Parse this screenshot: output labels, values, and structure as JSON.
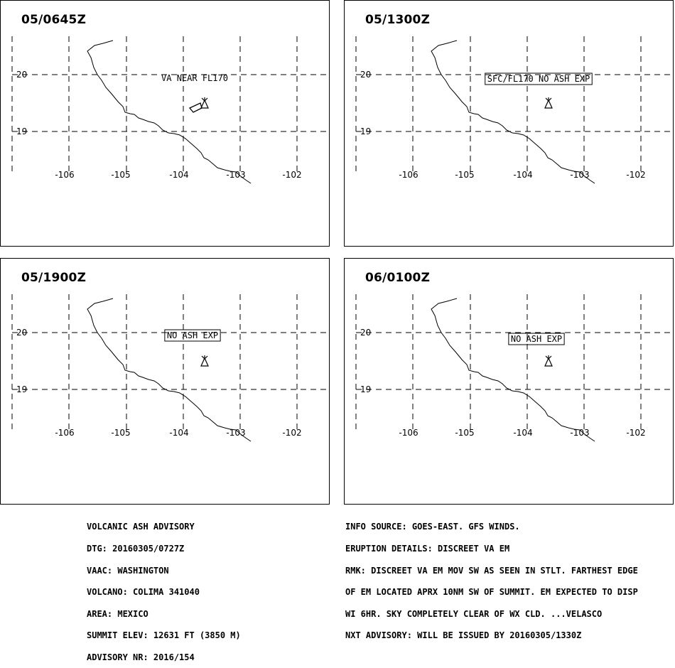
{
  "map": {
    "lat_labels": [
      "20",
      "19"
    ],
    "lon_labels": [
      "-106",
      "-105",
      "-104",
      "-103",
      "-102"
    ]
  },
  "panels": [
    {
      "title": "05/0645Z",
      "annotation": "VA NEAR FL170",
      "boxed": false,
      "ash_polygon": true
    },
    {
      "title": "05/1300Z",
      "annotation": "SFC/FL170 NO ASH EXP",
      "boxed": true,
      "ash_polygon": false
    },
    {
      "title": "05/1900Z",
      "annotation": "NO ASH EXP",
      "boxed": true,
      "ash_polygon": false
    },
    {
      "title": "06/0100Z",
      "annotation": "NO ASH EXP",
      "boxed": true,
      "ash_polygon": false
    }
  ],
  "advisory_left": [
    "VOLCANIC ASH ADVISORY",
    "DTG: 20160305/0727Z",
    "VAAC: WASHINGTON",
    "VOLCANO: COLIMA 341040",
    "AREA: MEXICO",
    "SUMMIT ELEV: 12631 FT (3850 M)",
    "ADVISORY NR: 2016/154"
  ],
  "advisory_right": [
    "INFO SOURCE: GOES-EAST. GFS WINDS.",
    "ERUPTION DETAILS: DISCREET VA EM",
    "RMK: DISCREET VA EM MOV SW AS SEEN IN STLT. FARTHEST EDGE",
    "OF EM LOCATED APRX 10NM SW OF SUMMIT. EM EXPECTED TO DISP",
    "WI 6HR. SKY COMPLETELY CLEAR OF WX CLD. ...VELASCO",
    "NXT ADVISORY: WILL BE ISSUED BY 20160305/1330Z"
  ]
}
